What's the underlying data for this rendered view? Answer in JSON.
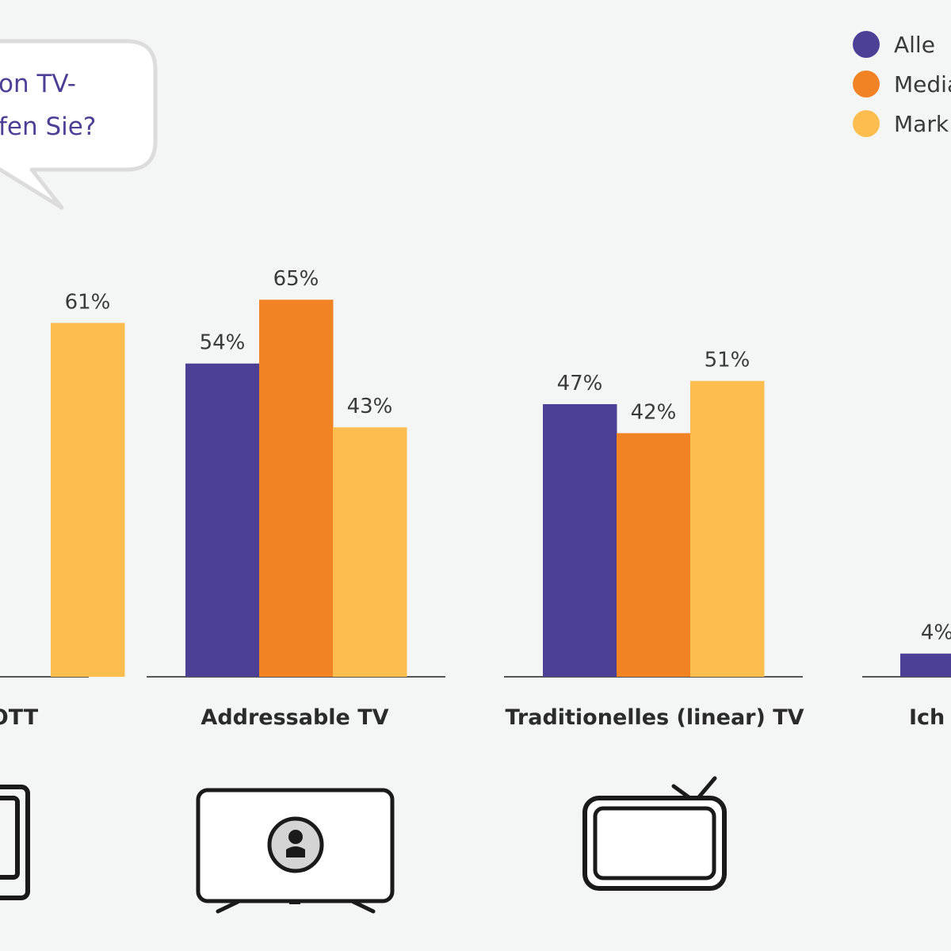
{
  "question": {
    "lines": [
      "on TV-",
      "fen Sie?"
    ]
  },
  "legend": [
    {
      "label": "Alle",
      "color": "#4b3f96"
    },
    {
      "label": "Media",
      "color": "#f28325"
    },
    {
      "label": "Mark",
      "color": "#fdbe4f"
    }
  ],
  "chart_data": {
    "type": "bar",
    "categories": [
      "OTT",
      "Addressable TV",
      "Traditionelles (linear) TV",
      "Ich"
    ],
    "series": [
      {
        "name": "Alle",
        "color": "#4b3f96",
        "values": [
          null,
          54,
          47,
          4
        ]
      },
      {
        "name": "Media",
        "color": "#f28325",
        "values": [
          null,
          65,
          42,
          null
        ]
      },
      {
        "name": "Mark",
        "color": "#fdbe4f",
        "values": [
          61,
          43,
          51,
          null
        ]
      }
    ],
    "value_labels": [
      [
        null,
        null,
        "61%"
      ],
      [
        "54%",
        "65%",
        "43%"
      ],
      [
        "47%",
        "42%",
        "51%"
      ],
      [
        "4%",
        null,
        null
      ]
    ],
    "ylim": [
      0,
      70
    ],
    "grid": false,
    "legend_position": "top-right"
  },
  "icons": [
    "ott-device-icon",
    "addressable-tv-icon",
    "traditional-tv-icon"
  ]
}
